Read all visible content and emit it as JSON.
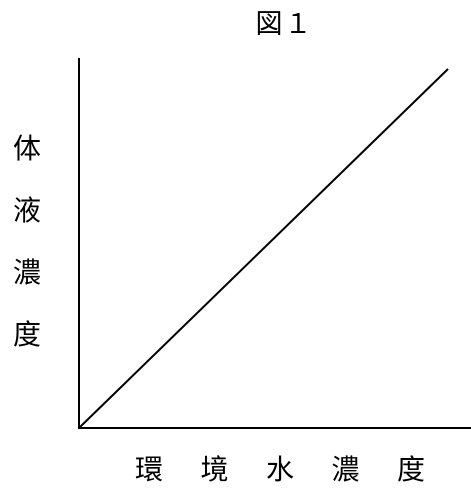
{
  "chart_data": {
    "type": "line",
    "title": "図１",
    "xlabel": "環境水濃度",
    "ylabel": "体液濃度",
    "xlabel_chars": [
      "環",
      "境",
      "水",
      "濃",
      "度"
    ],
    "ylabel_chars": [
      "体",
      "液",
      "濃",
      "度"
    ],
    "ticks": false,
    "grid": false,
    "legend": "none",
    "xlim": [
      0,
      1
    ],
    "ylim": [
      0,
      1
    ],
    "series": [
      {
        "x": [
          0,
          1
        ],
        "y": [
          0,
          1
        ]
      }
    ],
    "line_color": "#000000"
  }
}
